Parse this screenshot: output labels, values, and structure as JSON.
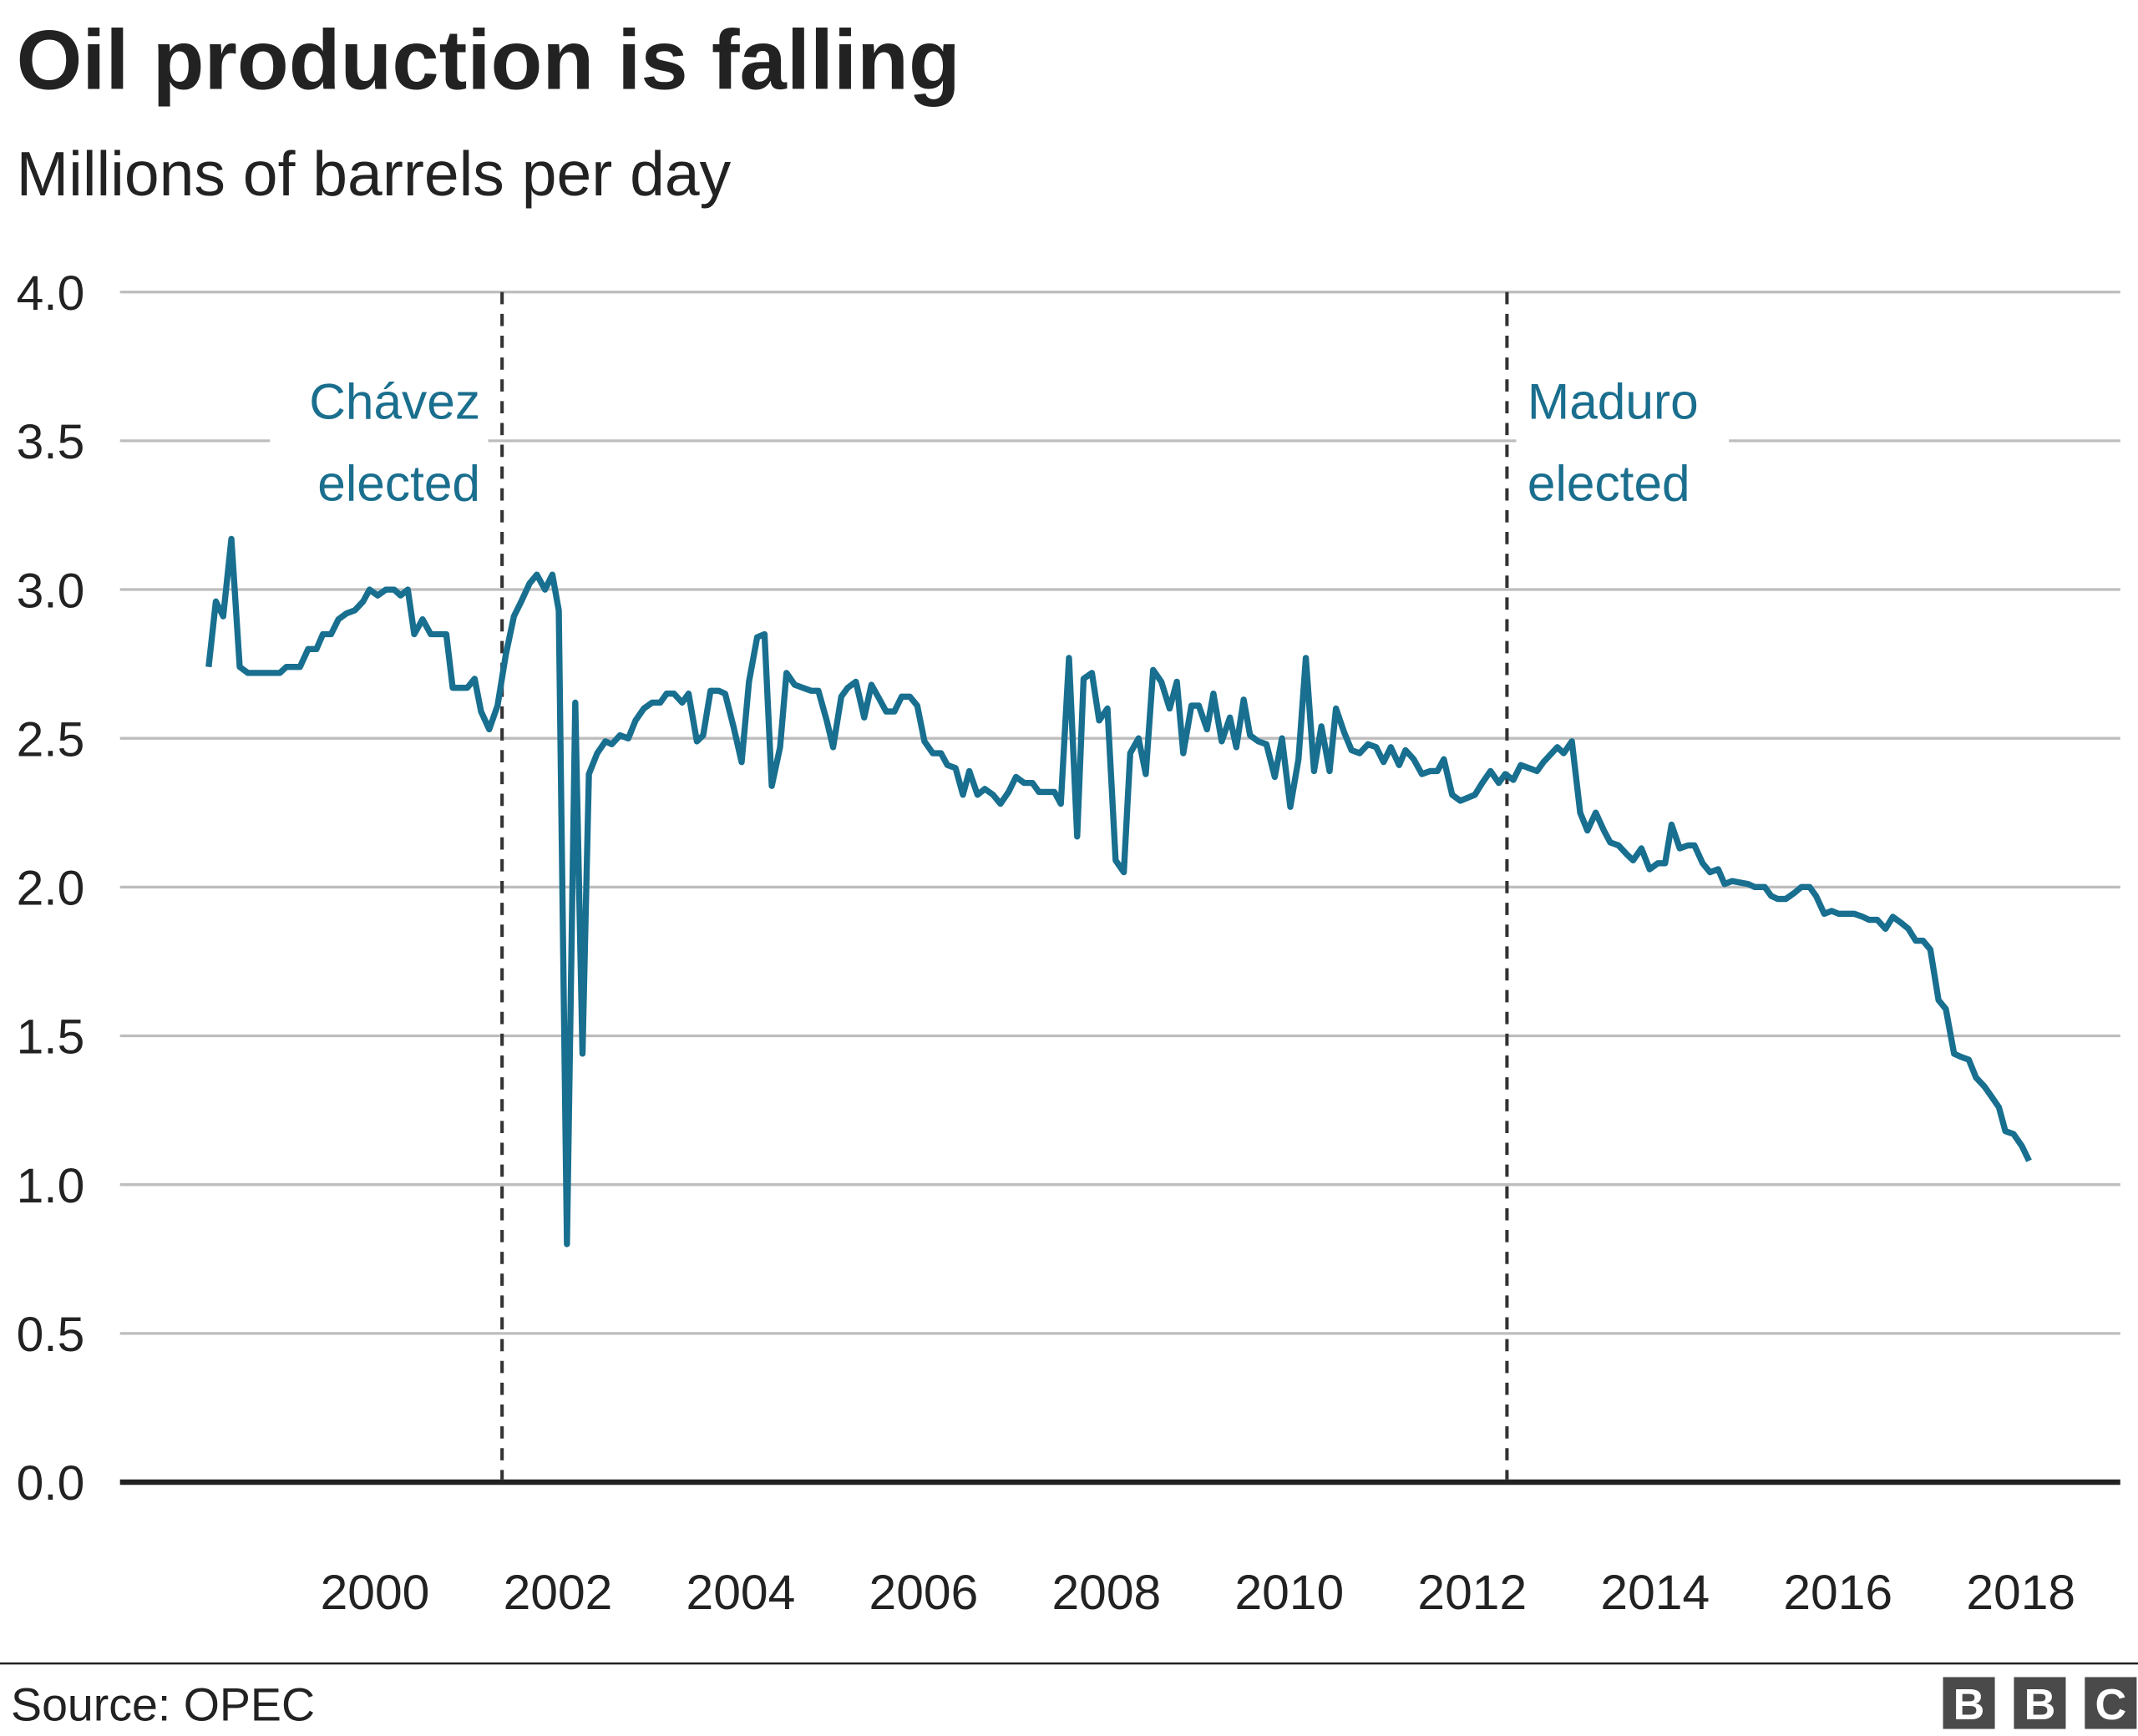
{
  "chart_data": {
    "type": "line",
    "title": "Oil production is falling",
    "subtitle": "Millions of barrels per day",
    "xlabel": "",
    "ylabel": "",
    "ylim": [
      0,
      4
    ],
    "xlim": [
      1998,
      2019
    ],
    "yticks": [
      "0.0",
      "0.5",
      "1.0",
      "1.5",
      "2.0",
      "2.5",
      "3.0",
      "3.5",
      "4.0"
    ],
    "xticks": [
      "2000",
      "2002",
      "2004",
      "2006",
      "2008",
      "2010",
      "2012",
      "2014",
      "2016",
      "2018"
    ],
    "grid": true,
    "line_color": "#186f8f",
    "annotation_color": "#1a6e8e",
    "annotations": [
      {
        "year": 2001.39,
        "line1": "Chávez",
        "line2": "elected"
      },
      {
        "year": 2012.38,
        "line1": "Maduro",
        "line2": "elected"
      }
    ],
    "series": [
      {
        "points": [
          [
            1998.18,
            2.74
          ],
          [
            1998.26,
            2.96
          ],
          [
            1998.34,
            2.91
          ],
          [
            1998.43,
            3.17
          ],
          [
            1998.52,
            2.74
          ],
          [
            1998.61,
            2.72
          ],
          [
            1998.96,
            2.72
          ],
          [
            1999.03,
            2.74
          ],
          [
            1999.18,
            2.74
          ],
          [
            1999.27,
            2.8
          ],
          [
            1999.36,
            2.8
          ],
          [
            1999.43,
            2.85
          ],
          [
            1999.52,
            2.85
          ],
          [
            1999.6,
            2.9
          ],
          [
            1999.69,
            2.92
          ],
          [
            1999.78,
            2.93
          ],
          [
            1999.87,
            2.96
          ],
          [
            1999.94,
            3.0
          ],
          [
            2000.03,
            2.98
          ],
          [
            2000.12,
            3.0
          ],
          [
            2000.21,
            3.0
          ],
          [
            2000.28,
            2.98
          ],
          [
            2000.36,
            3.0
          ],
          [
            2000.43,
            2.85
          ],
          [
            2000.52,
            2.9
          ],
          [
            2000.61,
            2.85
          ],
          [
            2000.78,
            2.85
          ],
          [
            2000.85,
            2.67
          ],
          [
            2001.01,
            2.67
          ],
          [
            2001.09,
            2.7
          ],
          [
            2001.16,
            2.59
          ],
          [
            2001.25,
            2.53
          ],
          [
            2001.34,
            2.61
          ],
          [
            2001.43,
            2.78
          ],
          [
            2001.52,
            2.91
          ],
          [
            2001.6,
            2.96
          ],
          [
            2001.69,
            3.02
          ],
          [
            2001.77,
            3.05
          ],
          [
            2001.86,
            3.0
          ],
          [
            2001.94,
            3.05
          ],
          [
            2002.01,
            2.93
          ],
          [
            2002.1,
            0.8
          ],
          [
            2002.19,
            2.62
          ],
          [
            2002.27,
            1.44
          ],
          [
            2002.34,
            2.38
          ],
          [
            2002.43,
            2.45
          ],
          [
            2002.52,
            2.49
          ],
          [
            2002.59,
            2.48
          ],
          [
            2002.68,
            2.51
          ],
          [
            2002.77,
            2.5
          ],
          [
            2002.85,
            2.56
          ],
          [
            2002.94,
            2.6
          ],
          [
            2003.03,
            2.62
          ],
          [
            2003.12,
            2.62
          ],
          [
            2003.19,
            2.65
          ],
          [
            2003.27,
            2.65
          ],
          [
            2003.36,
            2.62
          ],
          [
            2003.43,
            2.65
          ],
          [
            2003.52,
            2.49
          ],
          [
            2003.59,
            2.51
          ],
          [
            2003.67,
            2.66
          ],
          [
            2003.76,
            2.66
          ],
          [
            2003.83,
            2.65
          ],
          [
            2003.92,
            2.54
          ],
          [
            2004.01,
            2.42
          ],
          [
            2004.09,
            2.69
          ],
          [
            2004.18,
            2.84
          ],
          [
            2004.26,
            2.85
          ],
          [
            2004.34,
            2.34
          ],
          [
            2004.43,
            2.47
          ],
          [
            2004.5,
            2.72
          ],
          [
            2004.59,
            2.68
          ],
          [
            2004.68,
            2.67
          ],
          [
            2004.77,
            2.66
          ],
          [
            2004.85,
            2.66
          ],
          [
            2004.94,
            2.56
          ],
          [
            2005.01,
            2.47
          ],
          [
            2005.1,
            2.64
          ],
          [
            2005.17,
            2.67
          ],
          [
            2005.26,
            2.69
          ],
          [
            2005.35,
            2.57
          ],
          [
            2005.43,
            2.68
          ],
          [
            2005.52,
            2.63
          ],
          [
            2005.59,
            2.59
          ],
          [
            2005.68,
            2.59
          ],
          [
            2005.76,
            2.64
          ],
          [
            2005.85,
            2.64
          ],
          [
            2005.93,
            2.61
          ],
          [
            2006.01,
            2.49
          ],
          [
            2006.1,
            2.45
          ],
          [
            2006.19,
            2.45
          ],
          [
            2006.26,
            2.41
          ],
          [
            2006.35,
            2.4
          ],
          [
            2006.43,
            2.31
          ],
          [
            2006.5,
            2.39
          ],
          [
            2006.59,
            2.31
          ],
          [
            2006.67,
            2.33
          ],
          [
            2006.76,
            2.31
          ],
          [
            2006.84,
            2.28
          ],
          [
            2006.93,
            2.32
          ],
          [
            2007.01,
            2.37
          ],
          [
            2007.1,
            2.35
          ],
          [
            2007.19,
            2.35
          ],
          [
            2007.26,
            2.32
          ],
          [
            2007.43,
            2.32
          ],
          [
            2007.5,
            2.28
          ],
          [
            2007.59,
            2.77
          ],
          [
            2007.68,
            2.17
          ],
          [
            2007.75,
            2.7
          ],
          [
            2007.84,
            2.72
          ],
          [
            2007.92,
            2.56
          ],
          [
            2008.01,
            2.6
          ],
          [
            2008.1,
            2.09
          ],
          [
            2008.19,
            2.05
          ],
          [
            2008.26,
            2.45
          ],
          [
            2008.35,
            2.5
          ],
          [
            2008.43,
            2.38
          ],
          [
            2008.51,
            2.73
          ],
          [
            2008.6,
            2.69
          ],
          [
            2008.69,
            2.6
          ],
          [
            2008.77,
            2.69
          ],
          [
            2008.84,
            2.45
          ],
          [
            2008.93,
            2.61
          ],
          [
            2009.01,
            2.61
          ],
          [
            2009.1,
            2.53
          ],
          [
            2009.17,
            2.65
          ],
          [
            2009.26,
            2.49
          ],
          [
            2009.35,
            2.57
          ],
          [
            2009.42,
            2.47
          ],
          [
            2009.5,
            2.63
          ],
          [
            2009.57,
            2.51
          ],
          [
            2009.66,
            2.49
          ],
          [
            2009.75,
            2.48
          ],
          [
            2009.84,
            2.37
          ],
          [
            2009.92,
            2.5
          ],
          [
            2010.01,
            2.27
          ],
          [
            2010.1,
            2.43
          ],
          [
            2010.18,
            2.77
          ],
          [
            2010.27,
            2.39
          ],
          [
            2010.35,
            2.54
          ],
          [
            2010.44,
            2.39
          ],
          [
            2010.51,
            2.6
          ],
          [
            2010.6,
            2.52
          ],
          [
            2010.68,
            2.46
          ],
          [
            2010.77,
            2.45
          ],
          [
            2010.86,
            2.48
          ],
          [
            2010.95,
            2.47
          ],
          [
            2011.03,
            2.42
          ],
          [
            2011.11,
            2.47
          ],
          [
            2011.2,
            2.41
          ],
          [
            2011.27,
            2.46
          ],
          [
            2011.36,
            2.43
          ],
          [
            2011.45,
            2.38
          ],
          [
            2011.54,
            2.39
          ],
          [
            2011.62,
            2.39
          ],
          [
            2011.69,
            2.43
          ],
          [
            2011.78,
            2.31
          ],
          [
            2011.87,
            2.29
          ],
          [
            2012.03,
            2.31
          ],
          [
            2012.11,
            2.35
          ],
          [
            2012.2,
            2.39
          ],
          [
            2012.29,
            2.35
          ],
          [
            2012.36,
            2.38
          ],
          [
            2012.45,
            2.36
          ],
          [
            2012.53,
            2.41
          ],
          [
            2012.62,
            2.4
          ],
          [
            2012.71,
            2.39
          ],
          [
            2012.78,
            2.42
          ],
          [
            2012.93,
            2.47
          ],
          [
            2013.0,
            2.45
          ],
          [
            2013.09,
            2.49
          ],
          [
            2013.18,
            2.25
          ],
          [
            2013.26,
            2.19
          ],
          [
            2013.35,
            2.25
          ],
          [
            2013.44,
            2.19
          ],
          [
            2013.51,
            2.15
          ],
          [
            2013.6,
            2.14
          ],
          [
            2013.69,
            2.11
          ],
          [
            2013.76,
            2.09
          ],
          [
            2013.85,
            2.13
          ],
          [
            2013.94,
            2.06
          ],
          [
            2014.03,
            2.08
          ],
          [
            2014.11,
            2.08
          ],
          [
            2014.18,
            2.21
          ],
          [
            2014.27,
            2.13
          ],
          [
            2014.36,
            2.14
          ],
          [
            2014.43,
            2.14
          ],
          [
            2014.52,
            2.08
          ],
          [
            2014.6,
            2.05
          ],
          [
            2014.69,
            2.06
          ],
          [
            2014.76,
            2.01
          ],
          [
            2014.84,
            2.02
          ],
          [
            2015.02,
            2.01
          ],
          [
            2015.09,
            2.0
          ],
          [
            2015.2,
            2.0
          ],
          [
            2015.27,
            1.97
          ],
          [
            2015.34,
            1.96
          ],
          [
            2015.43,
            1.96
          ],
          [
            2015.52,
            1.98
          ],
          [
            2015.6,
            2.0
          ],
          [
            2015.69,
            2.0
          ],
          [
            2015.76,
            1.97
          ],
          [
            2015.85,
            1.91
          ],
          [
            2015.93,
            1.92
          ],
          [
            2016.01,
            1.91
          ],
          [
            2016.18,
            1.91
          ],
          [
            2016.27,
            1.9
          ],
          [
            2016.34,
            1.89
          ],
          [
            2016.43,
            1.89
          ],
          [
            2016.52,
            1.86
          ],
          [
            2016.6,
            1.9
          ],
          [
            2016.69,
            1.88
          ],
          [
            2016.77,
            1.86
          ],
          [
            2016.85,
            1.82
          ],
          [
            2016.93,
            1.82
          ],
          [
            2017.01,
            1.79
          ],
          [
            2017.1,
            1.62
          ],
          [
            2017.18,
            1.59
          ],
          [
            2017.27,
            1.44
          ],
          [
            2017.34,
            1.43
          ],
          [
            2017.43,
            1.42
          ],
          [
            2017.51,
            1.36
          ],
          [
            2017.6,
            1.33
          ],
          [
            2017.67,
            1.3
          ],
          [
            2017.76,
            1.26
          ],
          [
            2017.83,
            1.18
          ],
          [
            2017.92,
            1.17
          ],
          [
            2018.01,
            1.13
          ],
          [
            2018.09,
            1.08
          ]
        ]
      }
    ]
  },
  "footer": {
    "source": "Source: OPEC",
    "logo": "BBC",
    "logo_letters": [
      "B",
      "B",
      "C"
    ]
  }
}
